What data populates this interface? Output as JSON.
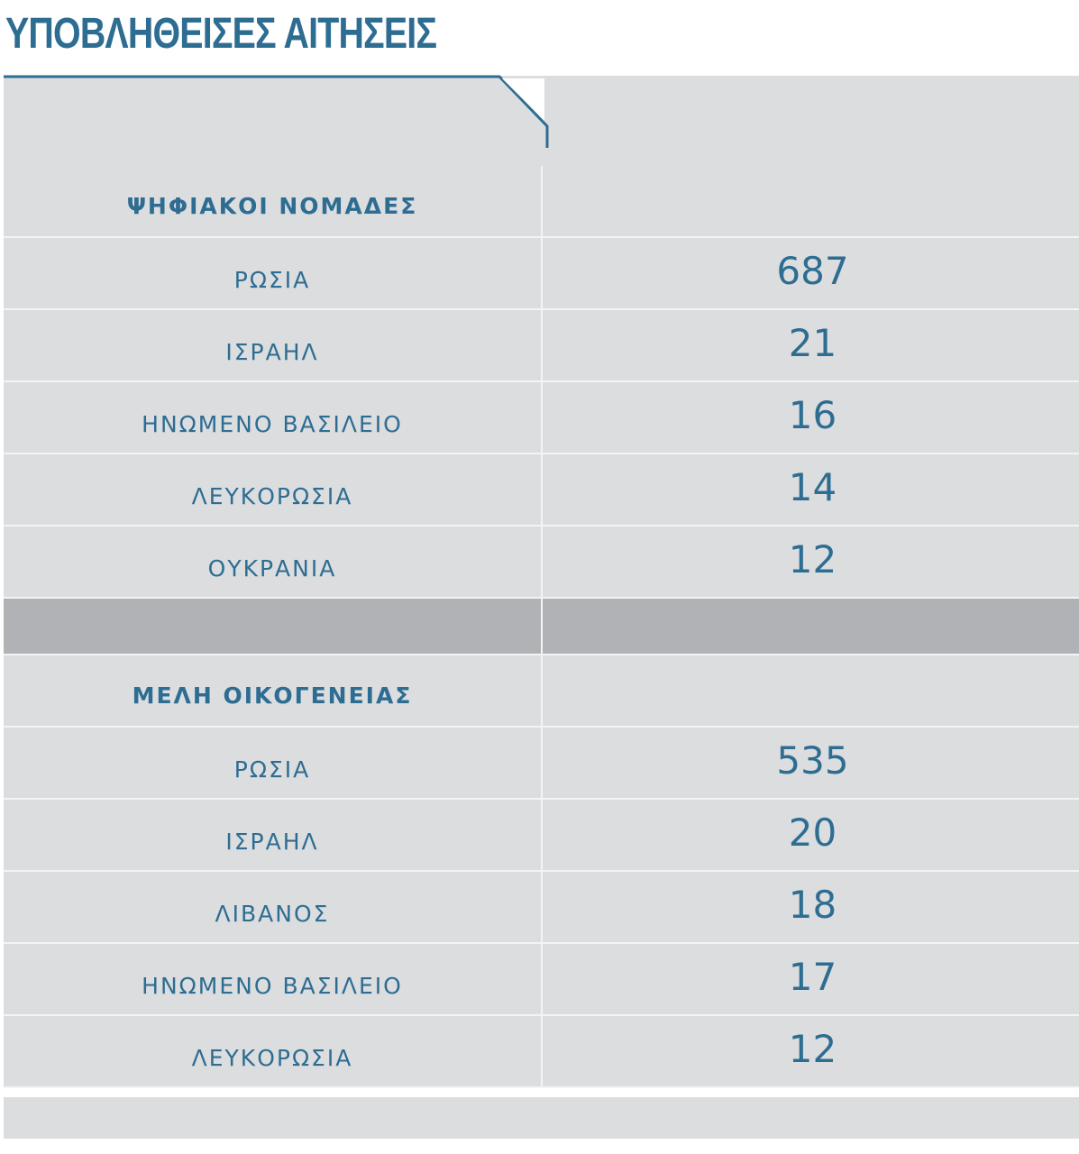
{
  "title": "ΥΠΟΒΛΗΘΕΙΣΕΣ ΑΙΤΗΣΕΙΣ",
  "colors": {
    "accent": "#2e6d92",
    "cell": "#dcdddf",
    "separator": "#b1b2b5"
  },
  "sections": [
    {
      "header": "ΨΗΦΙΑΚΟΙ ΝΟΜΑΔΕΣ",
      "rows": [
        {
          "country": "ΡΩΣΙΑ",
          "value": "687"
        },
        {
          "country": "ΙΣΡΑΗΛ",
          "value": "21"
        },
        {
          "country": "ΗΝΩΜΕΝΟ ΒΑΣΙΛΕΙΟ",
          "value": "16"
        },
        {
          "country": "ΛΕΥΚΟΡΩΣΙΑ",
          "value": "14"
        },
        {
          "country": "ΟΥΚΡΑΝΙΑ",
          "value": "12"
        }
      ]
    },
    {
      "header": "ΜΕΛΗ ΟΙΚΟΓΕΝΕΙΑΣ",
      "rows": [
        {
          "country": "ΡΩΣΙΑ",
          "value": "535"
        },
        {
          "country": "ΙΣΡΑΗΛ",
          "value": "20"
        },
        {
          "country": "ΛΙΒΑΝΟΣ",
          "value": "18"
        },
        {
          "country": "ΗΝΩΜΕΝΟ ΒΑΣΙΛΕΙΟ",
          "value": "17"
        },
        {
          "country": "ΛΕΥΚΟΡΩΣΙΑ",
          "value": "12"
        }
      ]
    }
  ]
}
